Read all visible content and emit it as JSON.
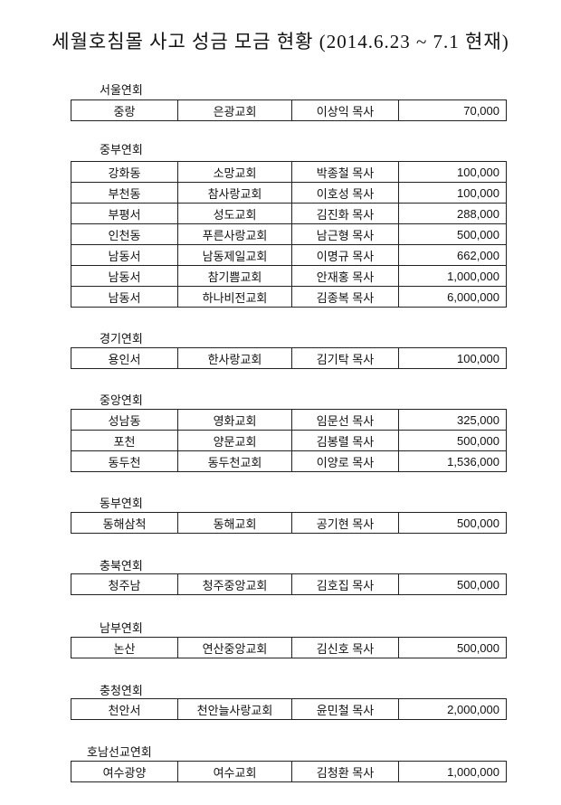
{
  "title": "세월호침몰 사고 성금 모금 현황 (2014.6.23  ~ 7.1 현재)",
  "sections": [
    {
      "name": "서울연회",
      "rows": [
        [
          "중랑",
          "은광교회",
          "이상익 목사",
          "70,000"
        ]
      ]
    },
    {
      "name": "중부연회",
      "rows": [
        [
          "강화동",
          "소망교회",
          "박종철 목사",
          "100,000"
        ],
        [
          "부천동",
          "참사랑교회",
          "이호성 목사",
          "100,000"
        ],
        [
          "부평서",
          "성도교회",
          "김진화 목사",
          "288,000"
        ],
        [
          "인천동",
          "푸른사랑교회",
          "남근형 목사",
          "500,000"
        ],
        [
          "남동서",
          "남동제일교회",
          "이명규 목사",
          "662,000"
        ],
        [
          "남동서",
          "참기쁨교회",
          "안재홍 목사",
          "1,000,000"
        ],
        [
          "남동서",
          "하나비전교회",
          "김종복 목사",
          "6,000,000"
        ]
      ]
    },
    {
      "name": "경기연회",
      "rows": [
        [
          "용인서",
          "한사랑교회",
          "김기탁 목사",
          "100,000"
        ]
      ]
    },
    {
      "name": "중앙연회",
      "rows": [
        [
          "성남동",
          "영화교회",
          "임문선 목사",
          "325,000"
        ],
        [
          "포천",
          "양문교회",
          "김봉렬 목사",
          "500,000"
        ],
        [
          "동두천",
          "동두천교회",
          "이양로 목사",
          "1,536,000"
        ]
      ]
    },
    {
      "name": "동부연회",
      "rows": [
        [
          "동해삼척",
          "동해교회",
          "공기현 목사",
          "500,000"
        ]
      ]
    },
    {
      "name": "충북연회",
      "rows": [
        [
          "청주남",
          "청주중앙교회",
          "김호집 목사",
          "500,000"
        ]
      ]
    },
    {
      "name": "남부연회",
      "rows": [
        [
          "논산",
          "연산중앙교회",
          "김신호 목사",
          "500,000"
        ]
      ]
    },
    {
      "name": "충청연회",
      "rows": [
        [
          "천안서",
          "천안늘사랑교회",
          "윤민철 목사",
          "2,000,000"
        ]
      ]
    },
    {
      "name": "호남선교연회",
      "rows": [
        [
          "여수광양",
          "여수교회",
          "김청환 목사",
          "1,000,000"
        ]
      ]
    }
  ]
}
